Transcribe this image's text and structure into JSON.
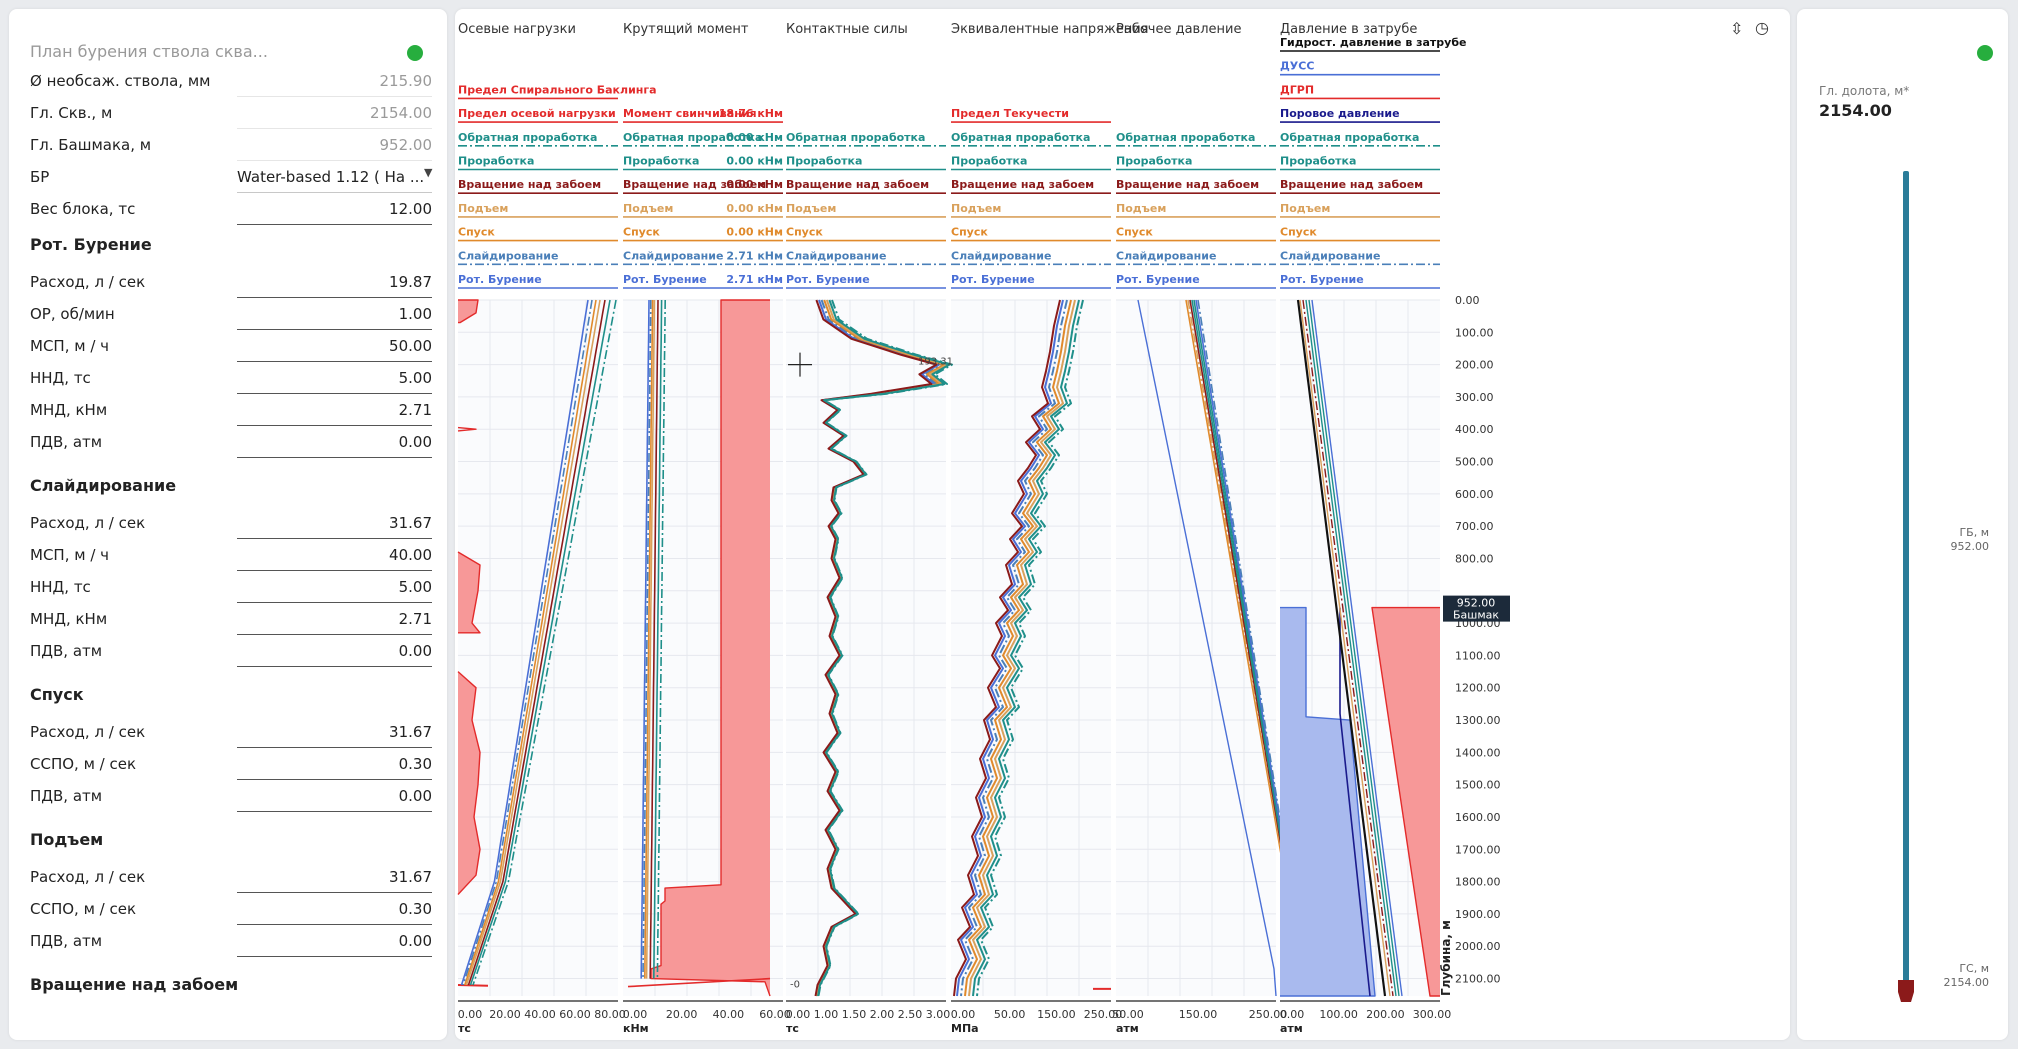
{
  "left": {
    "plan_title": "План бурения ствола сква...",
    "fields": [
      {
        "label": "Ø необсаж. ствола, мм",
        "value": "215.90",
        "readonly": true
      },
      {
        "label": "Гл. Скв., м",
        "value": "2154.00",
        "readonly": true
      },
      {
        "label": "Гл. Башмака, м",
        "value": "952.00",
        "readonly": true
      },
      {
        "label": "БР",
        "value": "Water-based 1.12 ( На ...",
        "select": true
      },
      {
        "label": "Вес блока, тс",
        "value": "12.00"
      }
    ],
    "sections": [
      {
        "title": "Рот. Бурение",
        "fields": [
          {
            "label": "Расход, л / сек",
            "value": "19.87"
          },
          {
            "label": "ОР, об/мин",
            "value": "1.00"
          },
          {
            "label": "МСП, м / ч",
            "value": "50.00"
          },
          {
            "label": "ННД, тс",
            "value": "5.00"
          },
          {
            "label": "МНД, кНм",
            "value": "2.71"
          },
          {
            "label": "ПДВ, атм",
            "value": "0.00"
          }
        ]
      },
      {
        "title": "Слайдирование",
        "fields": [
          {
            "label": "Расход, л / сек",
            "value": "31.67"
          },
          {
            "label": "МСП, м / ч",
            "value": "40.00"
          },
          {
            "label": "ННД, тс",
            "value": "5.00"
          },
          {
            "label": "МНД, кНм",
            "value": "2.71"
          },
          {
            "label": "ПДВ, атм",
            "value": "0.00"
          }
        ]
      },
      {
        "title": "Спуск",
        "fields": [
          {
            "label": "Расход, л / сек",
            "value": "31.67"
          },
          {
            "label": "ССПО, м / сек",
            "value": "0.30"
          },
          {
            "label": "ПДВ, атм",
            "value": "0.00"
          }
        ]
      },
      {
        "title": "Подъем",
        "fields": [
          {
            "label": "Расход, л / сек",
            "value": "31.67"
          },
          {
            "label": "ССПО, м / сек",
            "value": "0.30"
          },
          {
            "label": "ПДВ, атм",
            "value": "0.00"
          }
        ]
      },
      {
        "title": "Вращение над забоем",
        "fields": []
      }
    ]
  },
  "colors": {
    "rot": "#4a6fd6",
    "slide": "#4a7fb8",
    "down": "#e08a2c",
    "up": "#d9a15c",
    "rotabove": "#8b1a1a",
    "ream": "#1f8f8a",
    "backream": "#1f8f8a",
    "limit": "#e32b2b",
    "limit_fill": "#f79898",
    "blue_fill": "#a9baee",
    "black": "#111111",
    "navy": "#1a1a8c",
    "teal_bar": "#2a7c99",
    "bit": "#8b1a1a",
    "status": "#27ae3e"
  },
  "graphs": [
    {
      "title": "Осевые нагрузки",
      "unit": "тс",
      "ticks": [
        "0.00",
        "20.00",
        "40.00",
        "60.00",
        "80.00"
      ],
      "legend": [
        {
          "label": "Предел Спирального Баклинга",
          "color": "#e32b2b",
          "style": "solid",
          "bold": true
        },
        {
          "label": "Предел  осевой нагрузки",
          "color": "#e32b2b",
          "style": "solid",
          "bold": true
        },
        {
          "label": "Обратная проработка",
          "color": "#1f8f8a",
          "style": "dashdot"
        },
        {
          "label": "Проработка",
          "color": "#1f8f8a",
          "style": "solid"
        },
        {
          "label": "Вращение над забоем",
          "color": "#8b1a1a",
          "style": "solid"
        },
        {
          "label": "Подъем",
          "color": "#d9a15c",
          "style": "solid"
        },
        {
          "label": "Спуск",
          "color": "#e08a2c",
          "style": "solid"
        },
        {
          "label": "Слайдирование",
          "color": "#4a7fb8",
          "style": "dashdot"
        },
        {
          "label": "Рот. Бурение",
          "color": "#4a6fd6",
          "style": "solid"
        }
      ]
    },
    {
      "title": "Крутящий момент",
      "unit": "кНм",
      "ticks": [
        "0.00",
        "20.00",
        "40.00",
        "60.00"
      ],
      "legend": [
        {
          "label": "Момент свинчивания",
          "value": "18.76 кНм",
          "color": "#e32b2b",
          "style": "solid",
          "bold": true
        },
        {
          "label": "Обратная проработка",
          "value": "0.00 кНм",
          "color": "#1f8f8a",
          "style": "dashdot"
        },
        {
          "label": "Проработка",
          "value": "0.00 кНм",
          "color": "#1f8f8a",
          "style": "solid"
        },
        {
          "label": "Вращение над забоем",
          "value": "0.00 кНм",
          "color": "#8b1a1a",
          "style": "solid"
        },
        {
          "label": "Подъем",
          "value": "0.00 кНм",
          "color": "#d9a15c",
          "style": "solid"
        },
        {
          "label": "Спуск",
          "value": "0.00 кНм",
          "color": "#e08a2c",
          "style": "solid"
        },
        {
          "label": "Слайдирование",
          "value": "2.71 кНм",
          "color": "#4a7fb8",
          "style": "dashdot"
        },
        {
          "label": "Рот. Бурение",
          "value": "2.71 кНм",
          "color": "#4a6fd6",
          "style": "solid"
        }
      ]
    },
    {
      "title": "Контактные силы",
      "unit": "тс",
      "ticks": [
        "0.00",
        "1.00",
        "1.50",
        "2.00",
        "2.50",
        "3.00"
      ],
      "legend": [
        {
          "label": "Обратная проработка",
          "color": "#1f8f8a",
          "style": "dashdot"
        },
        {
          "label": "Проработка",
          "color": "#1f8f8a",
          "style": "solid"
        },
        {
          "label": "Вращение над забоем",
          "color": "#8b1a1a",
          "style": "solid"
        },
        {
          "label": "Подъем",
          "color": "#d9a15c",
          "style": "solid"
        },
        {
          "label": "Спуск",
          "color": "#e08a2c",
          "style": "solid"
        },
        {
          "label": "Слайдирование",
          "color": "#4a7fb8",
          "style": "dashdot"
        },
        {
          "label": "Рот. Бурение",
          "color": "#4a6fd6",
          "style": "solid"
        }
      ],
      "annotations": [
        "193.31",
        "-0"
      ]
    },
    {
      "title": "Эквивалентные напряжения",
      "unit": "МПа",
      "ticks": [
        "0.00",
        "50.00",
        "150.00",
        "250.00"
      ],
      "legend": [
        {
          "label": "Предел Текучести",
          "color": "#e32b2b",
          "style": "solid",
          "bold": true
        },
        {
          "label": "Обратная проработка",
          "color": "#1f8f8a",
          "style": "dashdot"
        },
        {
          "label": "Проработка",
          "color": "#1f8f8a",
          "style": "solid"
        },
        {
          "label": "Вращение над забоем",
          "color": "#8b1a1a",
          "style": "solid"
        },
        {
          "label": "Подъем",
          "color": "#d9a15c",
          "style": "solid"
        },
        {
          "label": "Спуск",
          "color": "#e08a2c",
          "style": "solid"
        },
        {
          "label": "Слайдирование",
          "color": "#4a7fb8",
          "style": "dashdot"
        },
        {
          "label": "Рот. Бурение",
          "color": "#4a6fd6",
          "style": "solid"
        }
      ]
    },
    {
      "title": "Рабочее давление",
      "unit": "атм",
      "ticks": [
        "50.00",
        "150.00",
        "250.00"
      ],
      "legend": [
        {
          "label": "Обратная проработка",
          "color": "#1f8f8a",
          "style": "dashdot"
        },
        {
          "label": "Проработка",
          "color": "#1f8f8a",
          "style": "solid"
        },
        {
          "label": "Вращение над забоем",
          "color": "#8b1a1a",
          "style": "solid"
        },
        {
          "label": "Подъем",
          "color": "#d9a15c",
          "style": "solid"
        },
        {
          "label": "Спуск",
          "color": "#e08a2c",
          "style": "solid"
        },
        {
          "label": "Слайдирование",
          "color": "#4a7fb8",
          "style": "dashdot"
        },
        {
          "label": "Рот. Бурение",
          "color": "#4a6fd6",
          "style": "solid"
        }
      ]
    },
    {
      "title": "Давление в затрубе",
      "unit": "атм",
      "ticks": [
        "0.00",
        "100.00",
        "200.00",
        "300.00"
      ],
      "legend": [
        {
          "label": "Гидрост. давление в затрубе",
          "color": "#111111",
          "style": "solid",
          "bold": true
        },
        {
          "label": "ДУСС",
          "color": "#4a6fd6",
          "style": "solid",
          "bold": true
        },
        {
          "label": "ДГРП",
          "color": "#e32b2b",
          "style": "solid",
          "bold": true
        },
        {
          "label": "Поровое давление",
          "color": "#1a1a8c",
          "style": "solid",
          "bold": true
        },
        {
          "label": "Обратная проработка",
          "color": "#1f8f8a",
          "style": "dashdot"
        },
        {
          "label": "Проработка",
          "color": "#1f8f8a",
          "style": "solid"
        },
        {
          "label": "Вращение над забоем",
          "color": "#8b1a1a",
          "style": "solid"
        },
        {
          "label": "Подъем",
          "color": "#d9a15c",
          "style": "solid"
        },
        {
          "label": "Спуск",
          "color": "#e08a2c",
          "style": "solid"
        },
        {
          "label": "Слайдирование",
          "color": "#4a7fb8",
          "style": "dashdot"
        },
        {
          "label": "Рот. Бурение",
          "color": "#4a6fd6",
          "style": "solid"
        }
      ]
    }
  ],
  "depth_axis": {
    "label": "Глубина, м",
    "ticks": [
      "0.00",
      "100.00",
      "200.00",
      "300.00",
      "400.00",
      "500.00",
      "600.00",
      "700.00",
      "800.00",
      "1000.00",
      "1100.00",
      "1200.00",
      "1300.00",
      "1400.00",
      "1500.00",
      "1600.00",
      "1700.00",
      "1800.00",
      "1900.00",
      "2000.00",
      "2100.00"
    ],
    "marker_value": "952.00",
    "marker_label": "Башмак"
  },
  "icons": {
    "collapse": "collapse-vertical-icon",
    "history": "clock-icon"
  },
  "right": {
    "bit_label": "Гл. долота, м*",
    "bit_value": "2154.00",
    "gb_label": "ГБ, м",
    "gb_value": "952.00",
    "gs_label": "ГС, м",
    "gs_value": "2154.00",
    "bit_depth": 2154,
    "total_depth": 2154
  }
}
